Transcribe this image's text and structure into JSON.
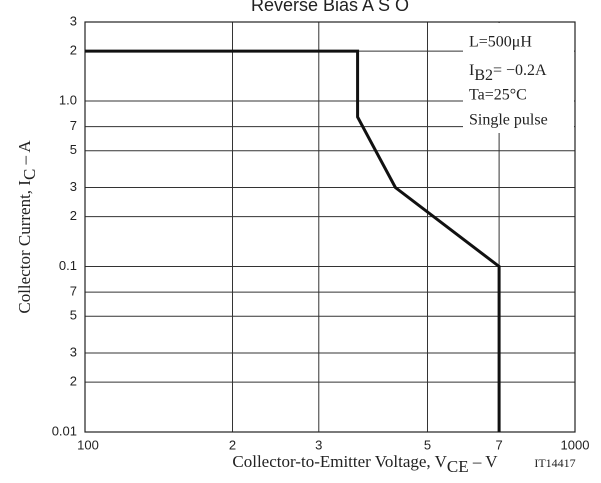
{
  "chart_data": {
    "type": "line",
    "title": "Reverse Bias A S O",
    "x_label": {
      "text": "Collector-to-Emitter Voltage, V",
      "sub": "CE",
      "after": " – V"
    },
    "y_label": {
      "text": "Collector Current, I",
      "sub": "C",
      "after": " – A"
    },
    "code": "IT14417",
    "annotation": {
      "line1": "L=500μH",
      "line2": {
        "text": "I",
        "sub": "B2",
        "after": "= −0.2A"
      },
      "line3": "Ta=25°C",
      "line4": "Single pulse"
    },
    "x": [
      100,
      360,
      360,
      430,
      700,
      700
    ],
    "series": [
      {
        "color": "#111111",
        "values": [
          2,
          2,
          0.8,
          0.3,
          0.1,
          0.01
        ]
      }
    ],
    "xlog": true,
    "ylog": true,
    "grid": true,
    "xlim": [
      100,
      1000
    ],
    "xticks": [
      100,
      {
        "value": 200,
        "label": "2"
      },
      {
        "value": 300,
        "label": "3"
      },
      {
        "value": 500,
        "label": "5"
      },
      {
        "value": 700,
        "label": "7"
      },
      1000
    ],
    "ylim": [
      0.01,
      3
    ],
    "yticks": [
      3,
      2,
      {
        "value": 1,
        "label": "1.0"
      },
      {
        "value": 0.7,
        "label": "7"
      },
      {
        "value": 0.5,
        "label": "5"
      },
      {
        "value": 0.3,
        "label": "3"
      },
      {
        "value": 0.2,
        "label": "2"
      },
      0.1,
      {
        "value": 0.07,
        "label": "7"
      },
      {
        "value": 0.05,
        "label": "5"
      },
      {
        "value": 0.03,
        "label": "3"
      },
      {
        "value": 0.02,
        "label": "2"
      },
      0.01
    ]
  }
}
